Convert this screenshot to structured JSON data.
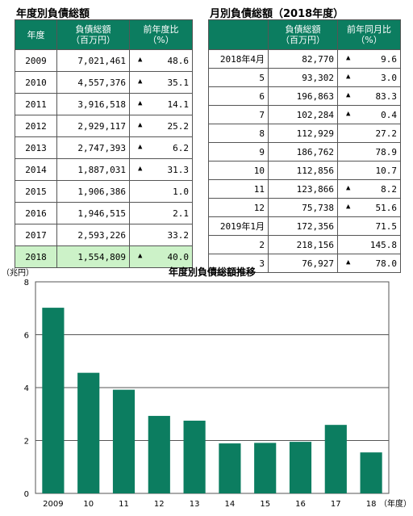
{
  "left_table": {
    "title": "年度別負債総額",
    "headers": [
      "年度",
      "負債総額\n（百万円）",
      "前年度比\n（%）"
    ],
    "rows": [
      {
        "year": "2009",
        "amount": "7,021,461",
        "change": "48.6",
        "down": true
      },
      {
        "year": "2010",
        "amount": "4,557,376",
        "change": "35.1",
        "down": true
      },
      {
        "year": "2011",
        "amount": "3,916,518",
        "change": "14.1",
        "down": true
      },
      {
        "year": "2012",
        "amount": "2,929,117",
        "change": "25.2",
        "down": true
      },
      {
        "year": "2013",
        "amount": "2,747,393",
        "change": "6.2",
        "down": true
      },
      {
        "year": "2014",
        "amount": "1,887,031",
        "change": "31.3",
        "down": true
      },
      {
        "year": "2015",
        "amount": "1,906,386",
        "change": "1.0",
        "down": false
      },
      {
        "year": "2016",
        "amount": "1,946,515",
        "change": "2.1",
        "down": false
      },
      {
        "year": "2017",
        "amount": "2,593,226",
        "change": "33.2",
        "down": false
      },
      {
        "year": "2018",
        "amount": "1,554,809",
        "change": "40.0",
        "down": true,
        "highlight": true
      }
    ]
  },
  "right_table": {
    "title": "月別負債総額（2018年度）",
    "headers": [
      "",
      "負債総額\n（百万円）",
      "前年同月比\n（%）"
    ],
    "rows": [
      {
        "month": "2018年4月",
        "amount": "82,770",
        "change": "9.6",
        "down": true
      },
      {
        "month": "5",
        "amount": "93,302",
        "change": "3.0",
        "down": true
      },
      {
        "month": "6",
        "amount": "196,863",
        "change": "83.3",
        "down": true
      },
      {
        "month": "7",
        "amount": "102,284",
        "change": "0.4",
        "down": true
      },
      {
        "month": "8",
        "amount": "112,929",
        "change": "27.2",
        "down": false
      },
      {
        "month": "9",
        "amount": "186,762",
        "change": "78.9",
        "down": false
      },
      {
        "month": "10",
        "amount": "112,856",
        "change": "10.7",
        "down": false
      },
      {
        "month": "11",
        "amount": "123,866",
        "change": "8.2",
        "down": true
      },
      {
        "month": "12",
        "amount": "75,738",
        "change": "51.6",
        "down": true
      },
      {
        "month": "2019年1月",
        "amount": "172,356",
        "change": "71.5",
        "down": false
      },
      {
        "month": "2",
        "amount": "218,156",
        "change": "145.8",
        "down": false
      },
      {
        "month": "3",
        "amount": "76,927",
        "change": "78.0",
        "down": true
      }
    ]
  },
  "triangle": "▲",
  "chart_data": {
    "type": "bar",
    "title": "年度別負債総額推移",
    "y_unit": "（兆円）",
    "x_unit": "（年度）",
    "categories": [
      "2009",
      "10",
      "11",
      "12",
      "13",
      "14",
      "15",
      "16",
      "17",
      "18"
    ],
    "values": [
      7.02,
      4.56,
      3.92,
      2.93,
      2.75,
      1.89,
      1.91,
      1.95,
      2.59,
      1.55
    ],
    "ylim": [
      0,
      8
    ],
    "yticks": [
      0,
      2,
      4,
      6,
      8
    ],
    "grid": true,
    "bar_color": "#0c7d60"
  }
}
